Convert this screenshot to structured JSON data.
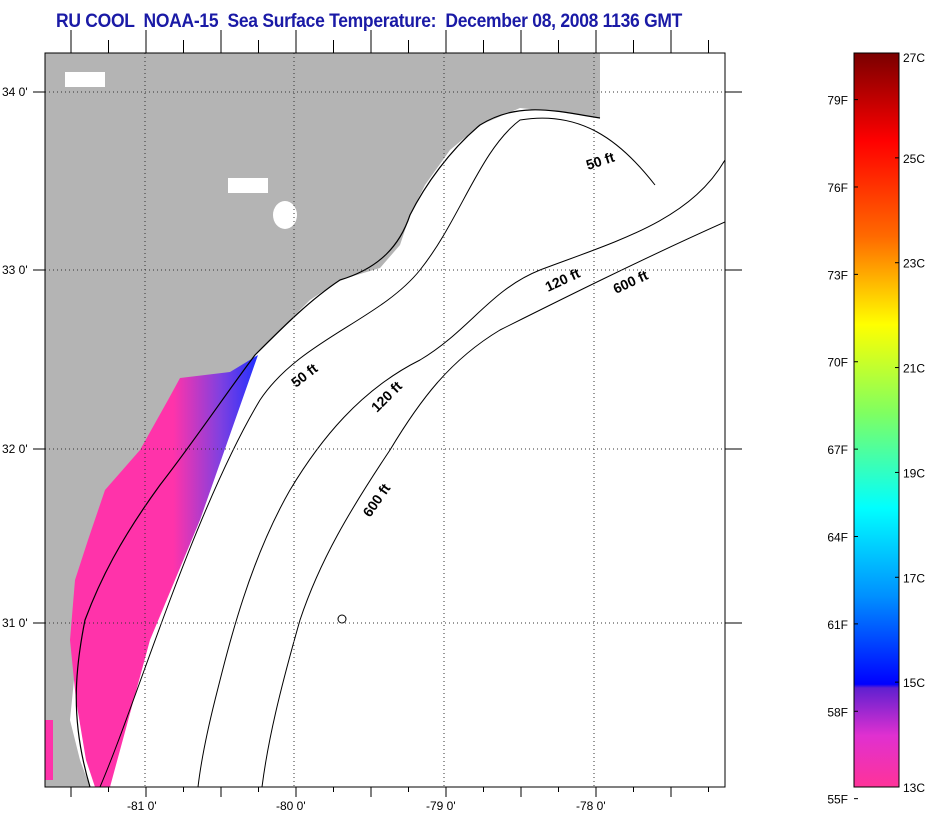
{
  "title": "RU COOL  NOAA-15  Sea Surface Temperature:  December 08, 2008 1136 GMT",
  "map": {
    "lat_labels": [
      "34 0'",
      "33 0'",
      "32 0'",
      "31 0'"
    ],
    "lon_labels": [
      "-81 0'",
      "-80 0'",
      "-79 0'",
      "-78 0'"
    ],
    "contour_labels": [
      "50 ft",
      "50 ft",
      "120 ft",
      "120 ft",
      "600 ft",
      "600 ft"
    ],
    "colors": {
      "land": "#b4b4b4",
      "sst_cold": "#ff33cc",
      "sst_mid": "#2030ff"
    }
  },
  "colorbar": {
    "f_labels": [
      "79F",
      "76F",
      "73F",
      "70F",
      "67F",
      "64F",
      "61F",
      "58F",
      "55F"
    ],
    "c_labels": [
      "27C",
      "25C",
      "23C",
      "21C",
      "19C",
      "17C",
      "15C",
      "13C"
    ],
    "range_c": [
      13,
      27
    ]
  }
}
